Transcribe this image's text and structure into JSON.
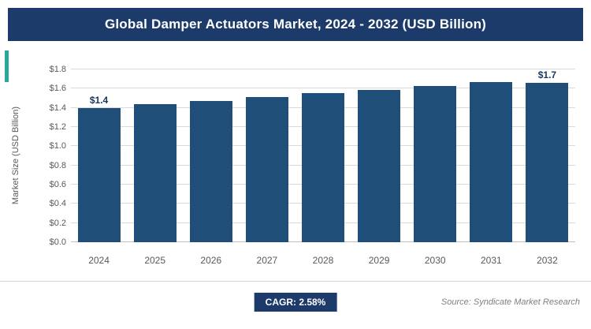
{
  "header": {
    "title": "Global Damper Actuators Market, 2024 - 2032 (USD Billion)"
  },
  "chart_data": {
    "type": "bar",
    "title": "Global Damper Actuators Market, 2024 - 2032 (USD Billion)",
    "categories": [
      "2024",
      "2025",
      "2026",
      "2027",
      "2028",
      "2029",
      "2030",
      "2031",
      "2032"
    ],
    "values": [
      1.4,
      1.44,
      1.47,
      1.51,
      1.55,
      1.59,
      1.63,
      1.67,
      1.72
    ],
    "bar_labels": [
      "$1.4",
      "",
      "",
      "",
      "",
      "",
      "",
      "",
      "$1.7"
    ],
    "xlabel": "",
    "ylabel": "Market Size (USD Billion)",
    "ylim": [
      0,
      1.8
    ],
    "ytick_step": 0.2,
    "ytick_prefix": "$",
    "grid": true,
    "legend": "none",
    "bar_color": "#1f4e79"
  },
  "footer": {
    "cagr_label": "CAGR: 2.58%",
    "source": "Source: Syndicate Market Research"
  },
  "colors": {
    "header_bg": "#1c3a6a",
    "accent": "#2aa79b",
    "bar": "#1f4e79",
    "grid": "#d9d9d9",
    "axis_text": "#595959",
    "source_text": "#7f7f7f"
  }
}
